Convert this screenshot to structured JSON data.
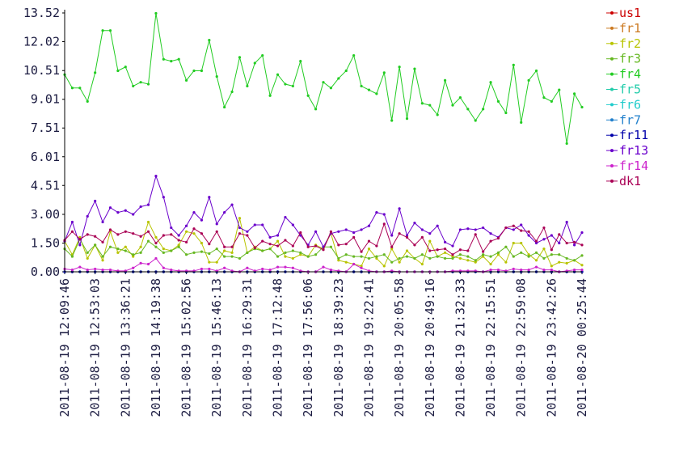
{
  "chart_data": {
    "type": "line",
    "categories": [
      "2011-08-19 12:09:46",
      null,
      null,
      null,
      "2011-08-19 12:53:03",
      null,
      null,
      null,
      "2011-08-19 13:36:21",
      null,
      null,
      null,
      "2011-08-19 14:19:38",
      null,
      null,
      null,
      "2011-08-19 15:02:56",
      null,
      null,
      null,
      "2011-08-19 15:46:13",
      null,
      null,
      null,
      "2011-08-19 16:29:31",
      null,
      null,
      null,
      "2011-08-19 17:12:48",
      null,
      null,
      null,
      "2011-08-19 17:56:06",
      null,
      null,
      null,
      "2011-08-19 18:39:23",
      null,
      null,
      null,
      "2011-08-19 19:22:41",
      null,
      null,
      null,
      "2011-08-19 20:05:58",
      null,
      null,
      null,
      "2011-08-19 20:49:16",
      null,
      null,
      null,
      "2011-08-19 21:32:33",
      null,
      null,
      null,
      "2011-08-19 22:15:51",
      null,
      null,
      null,
      "2011-08-19 22:59:08",
      null,
      null,
      null,
      "2011-08-19 23:42:26",
      null,
      null,
      null,
      "2011-08-20 00:25:44"
    ],
    "ylim": [
      0,
      13.52
    ],
    "yticks": [
      {
        "value": 0,
        "label": "0.00"
      },
      {
        "value": 1.5,
        "label": "1.50"
      },
      {
        "value": 3,
        "label": "3.00"
      },
      4.51,
      6.01,
      7.51,
      9.01,
      10.51,
      12.02,
      13.52
    ],
    "legend": "right",
    "series": [
      {
        "name": "us1",
        "color": "#cc0000",
        "values": [
          0,
          0,
          0,
          0,
          0,
          0,
          0,
          0,
          0,
          0,
          0,
          0,
          0,
          0,
          0,
          0,
          0,
          0,
          0,
          0,
          0,
          0,
          0,
          0,
          0,
          0,
          0,
          0,
          0,
          0,
          0,
          0,
          0,
          0,
          0,
          0,
          0,
          0,
          0,
          0,
          0,
          0,
          0,
          0,
          0,
          0,
          0,
          0,
          0,
          0,
          0,
          0,
          0,
          0,
          0,
          0,
          0,
          0,
          0,
          0,
          0,
          0,
          0,
          0,
          0,
          0,
          0,
          0,
          0
        ]
      },
      {
        "name": "fr1",
        "color": "#cc7a22",
        "values": [
          0,
          0,
          0,
          0,
          0,
          0,
          0,
          0,
          0,
          0,
          0,
          0,
          0,
          0,
          0,
          0,
          0,
          0,
          0,
          0,
          0,
          0,
          0,
          0,
          0,
          0,
          0,
          0,
          0,
          0,
          0,
          0,
          0,
          0,
          0,
          0,
          0,
          0,
          0,
          0,
          0,
          0,
          0,
          0,
          0,
          0,
          0,
          0,
          0,
          0,
          0,
          0,
          0,
          0,
          0,
          0,
          0,
          0,
          0,
          0,
          0,
          0,
          0,
          0,
          0,
          0,
          0,
          0,
          0
        ]
      },
      {
        "name": "fr2",
        "color": "#b8c400",
        "values": [
          1.6,
          0.9,
          1.8,
          0.7,
          1.4,
          0.6,
          2.1,
          1.0,
          1.3,
          0.8,
          1.3,
          2.6,
          1.8,
          1.2,
          1.1,
          1.4,
          2.1,
          2.0,
          1.5,
          0.5,
          0.5,
          1.1,
          1.0,
          2.8,
          1.0,
          1.3,
          1.1,
          1.2,
          1.6,
          0.8,
          0.7,
          0.9,
          0.8,
          1.4,
          1.2,
          2.0,
          0.6,
          0.5,
          0.4,
          0.3,
          1.2,
          0.7,
          0.3,
          1.2,
          0.5,
          1.1,
          0.7,
          0.4,
          1.6,
          0.8,
          1.0,
          0.8,
          0.7,
          0.6,
          0.5,
          0.8,
          0.4,
          0.9,
          0.5,
          1.5,
          1.5,
          0.9,
          0.6,
          1.2,
          0.3,
          0.5,
          0.45,
          0.6,
          0.35
        ]
      },
      {
        "name": "fr3",
        "color": "#66b822",
        "values": [
          1.2,
          0.8,
          1.7,
          1.0,
          1.4,
          0.8,
          1.3,
          1.2,
          1.1,
          0.9,
          1.0,
          1.6,
          1.3,
          1.0,
          1.1,
          1.3,
          0.9,
          1.0,
          1.05,
          0.95,
          1.2,
          0.8,
          0.8,
          0.7,
          1.0,
          1.2,
          1.1,
          1.2,
          0.8,
          1.0,
          1.1,
          1.0,
          0.8,
          0.9,
          1.3,
          1.3,
          0.7,
          0.9,
          0.8,
          0.8,
          0.7,
          0.8,
          0.9,
          0.5,
          0.7,
          0.8,
          0.7,
          0.9,
          0.7,
          0.8,
          0.7,
          0.7,
          0.9,
          0.8,
          0.6,
          0.9,
          0.8,
          1.0,
          1.3,
          0.8,
          1.0,
          0.8,
          1.0,
          0.7,
          0.9,
          0.9,
          0.7,
          0.6,
          0.85
        ]
      },
      {
        "name": "fr4",
        "color": "#22cc22",
        "values": [
          10.3,
          9.6,
          9.6,
          8.9,
          10.4,
          12.6,
          12.6,
          10.5,
          10.7,
          9.7,
          9.9,
          9.8,
          13.5,
          11.1,
          11.0,
          11.1,
          10.0,
          10.5,
          10.5,
          12.1,
          10.2,
          8.6,
          9.4,
          11.2,
          9.7,
          10.9,
          11.3,
          9.2,
          10.3,
          9.8,
          9.7,
          11.0,
          9.2,
          8.5,
          9.9,
          9.6,
          10.1,
          10.5,
          11.3,
          9.7,
          9.5,
          9.3,
          10.4,
          7.9,
          10.7,
          8.0,
          10.6,
          8.8,
          8.7,
          8.2,
          10.0,
          8.7,
          9.1,
          8.5,
          7.9,
          8.5,
          9.9,
          8.9,
          8.3,
          10.8,
          7.8,
          10.0,
          10.5,
          9.1,
          8.9,
          9.5,
          6.7,
          9.3,
          8.6
        ]
      },
      {
        "name": "fr5",
        "color": "#22ccaa",
        "values": [
          0,
          0,
          0,
          0,
          0,
          0,
          0,
          0,
          0,
          0,
          0,
          0,
          0,
          0,
          0,
          0,
          0,
          0,
          0,
          0,
          0,
          0,
          0,
          0,
          0,
          0,
          0,
          0,
          0,
          0,
          0,
          0,
          0,
          0,
          0,
          0,
          0,
          0,
          0,
          0,
          0,
          0,
          0,
          0,
          0,
          0,
          0,
          0,
          0,
          0,
          0,
          0,
          0,
          0,
          0,
          0,
          0,
          0,
          0,
          0,
          0,
          0,
          0,
          0,
          0,
          0,
          0,
          0,
          0
        ]
      },
      {
        "name": "fr6",
        "color": "#22cccc",
        "values": [
          0,
          0,
          0,
          0,
          0,
          0,
          0,
          0,
          0,
          0,
          0,
          0,
          0,
          0,
          0,
          0,
          0,
          0,
          0,
          0,
          0,
          0,
          0,
          0,
          0,
          0,
          0,
          0,
          0,
          0,
          0,
          0,
          0,
          0,
          0,
          0,
          0,
          0,
          0,
          0,
          0,
          0,
          0,
          0,
          0,
          0,
          0,
          0,
          0,
          0,
          0,
          0,
          0,
          0,
          0,
          0,
          0,
          0,
          0,
          0,
          0,
          0,
          0,
          0,
          0,
          0,
          0,
          0,
          0
        ]
      },
      {
        "name": "fr7",
        "color": "#2280cc",
        "values": [
          0,
          0,
          0,
          0,
          0,
          0,
          0,
          0,
          0,
          0,
          0,
          0,
          0,
          0,
          0,
          0,
          0,
          0,
          0,
          0,
          0,
          0,
          0,
          0,
          0,
          0,
          0,
          0,
          0,
          0,
          0,
          0,
          0,
          0,
          0,
          0,
          0,
          0,
          0,
          0,
          0,
          0,
          0,
          0,
          0,
          0,
          0,
          0,
          0,
          0,
          0,
          0,
          0,
          0,
          0,
          0,
          0,
          0,
          0,
          0,
          0,
          0,
          0,
          0,
          0,
          0,
          0,
          0,
          0
        ]
      },
      {
        "name": "fr11",
        "color": "#0000aa",
        "values": [
          0,
          0,
          0,
          0,
          0,
          0,
          0,
          0,
          0,
          0,
          0,
          0,
          0,
          0,
          0,
          0,
          0,
          0,
          0,
          0,
          0,
          0,
          0,
          0,
          0,
          0,
          0,
          0,
          0,
          0,
          0,
          0,
          0,
          0,
          0,
          0,
          0,
          0,
          0,
          0,
          0,
          0,
          0,
          0,
          0,
          0,
          0,
          0,
          0,
          0,
          0,
          0,
          0,
          0,
          0,
          0,
          0,
          0,
          0,
          0,
          0,
          0,
          0,
          0,
          0,
          0,
          0,
          0,
          0
        ]
      },
      {
        "name": "fr13",
        "color": "#6a00cc",
        "values": [
          1.6,
          2.6,
          1.4,
          2.9,
          3.7,
          2.6,
          3.35,
          3.1,
          3.2,
          3.0,
          3.4,
          3.5,
          5.0,
          3.9,
          2.3,
          1.9,
          2.4,
          3.1,
          2.7,
          3.9,
          2.5,
          3.1,
          3.5,
          2.3,
          2.1,
          2.45,
          2.45,
          1.8,
          1.9,
          2.85,
          2.45,
          1.9,
          1.4,
          2.1,
          1.3,
          2.0,
          2.1,
          2.2,
          2.05,
          2.2,
          2.4,
          3.1,
          3.0,
          1.9,
          3.3,
          1.9,
          2.55,
          2.2,
          2.0,
          2.4,
          1.55,
          1.35,
          2.2,
          2.25,
          2.2,
          2.3,
          2.0,
          1.8,
          2.3,
          2.2,
          2.45,
          1.9,
          1.5,
          1.7,
          1.9,
          1.5,
          2.6,
          1.4,
          2.05
        ]
      },
      {
        "name": "fr14",
        "color": "#cc22cc",
        "values": [
          0.15,
          0.1,
          0.25,
          0.1,
          0.15,
          0.1,
          0.1,
          0.05,
          0.05,
          0.2,
          0.45,
          0.4,
          0.7,
          0.2,
          0.1,
          0.05,
          0.05,
          0.05,
          0.15,
          0.15,
          0.05,
          0.2,
          0.05,
          0.0,
          0.2,
          0.05,
          0.15,
          0.1,
          0.25,
          0.25,
          0.2,
          0.05,
          0.0,
          0.0,
          0.25,
          0.1,
          0.05,
          0.0,
          0.4,
          0.2,
          0.05,
          0.0,
          0.0,
          0.05,
          0.0,
          0.0,
          0.0,
          0.0,
          0.0,
          0.0,
          0.0,
          0.05,
          0.05,
          0.05,
          0.05,
          0.0,
          0.1,
          0.1,
          0.05,
          0.15,
          0.1,
          0.1,
          0.25,
          0.1,
          0.1,
          0.0,
          0.05,
          0.1,
          0.1
        ]
      },
      {
        "name": "dk1",
        "color": "#aa0055",
        "values": [
          1.65,
          2.1,
          1.7,
          1.95,
          1.85,
          1.55,
          2.2,
          1.95,
          2.1,
          2.0,
          1.85,
          2.1,
          1.5,
          1.9,
          1.95,
          1.65,
          1.55,
          2.25,
          2.0,
          1.45,
          2.1,
          1.3,
          1.3,
          2.0,
          1.9,
          1.25,
          1.6,
          1.45,
          1.35,
          1.65,
          1.35,
          2.05,
          1.3,
          1.35,
          1.15,
          2.1,
          1.4,
          1.45,
          1.8,
          1.05,
          1.6,
          1.35,
          2.5,
          1.3,
          2.0,
          1.8,
          1.4,
          1.8,
          1.1,
          1.15,
          1.2,
          0.9,
          1.15,
          1.1,
          1.95,
          1.05,
          1.6,
          1.75,
          2.3,
          2.4,
          2.15,
          2.1,
          1.6,
          2.3,
          1.15,
          1.95,
          1.5,
          1.55,
          1.4
        ]
      }
    ]
  }
}
